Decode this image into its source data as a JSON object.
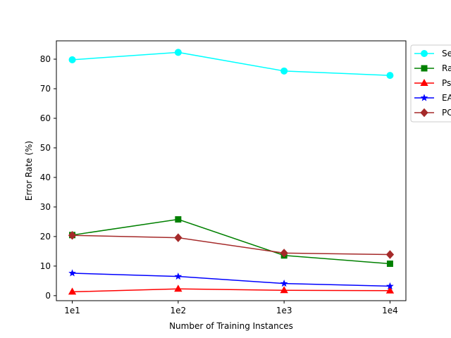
{
  "chart_data": {
    "type": "line",
    "x": [
      10,
      100,
      1000,
      10000
    ],
    "xscale": "log",
    "xtick_labels": [
      "1e1",
      "1e2",
      "1e3",
      "1e4"
    ],
    "xlabel": "Number of Training Instances",
    "ylabel": "Error Rate (%)",
    "ylim": [
      -1.7,
      86.2
    ],
    "yticks": [
      0,
      10,
      20,
      30,
      40,
      50,
      60,
      70,
      80
    ],
    "grid": false,
    "legend_position": "outside-right (clipped)",
    "series": [
      {
        "name": "Se",
        "color": "#00ffff",
        "marker": "circle",
        "values": [
          79.8,
          82.3,
          76.0,
          74.5
        ]
      },
      {
        "name": "Ra",
        "color": "#008000",
        "marker": "square",
        "values": [
          20.5,
          25.8,
          13.6,
          10.8
        ]
      },
      {
        "name": "Ps",
        "color": "#ff0000",
        "marker": "triangle",
        "values": [
          1.3,
          2.3,
          1.8,
          1.7
        ]
      },
      {
        "name": "EA",
        "color": "#0000ff",
        "marker": "star",
        "values": [
          7.6,
          6.5,
          4.1,
          3.2
        ]
      },
      {
        "name": "PC",
        "color": "#a52a2a",
        "marker": "diamond",
        "values": [
          20.4,
          19.6,
          14.4,
          13.9
        ]
      }
    ]
  }
}
